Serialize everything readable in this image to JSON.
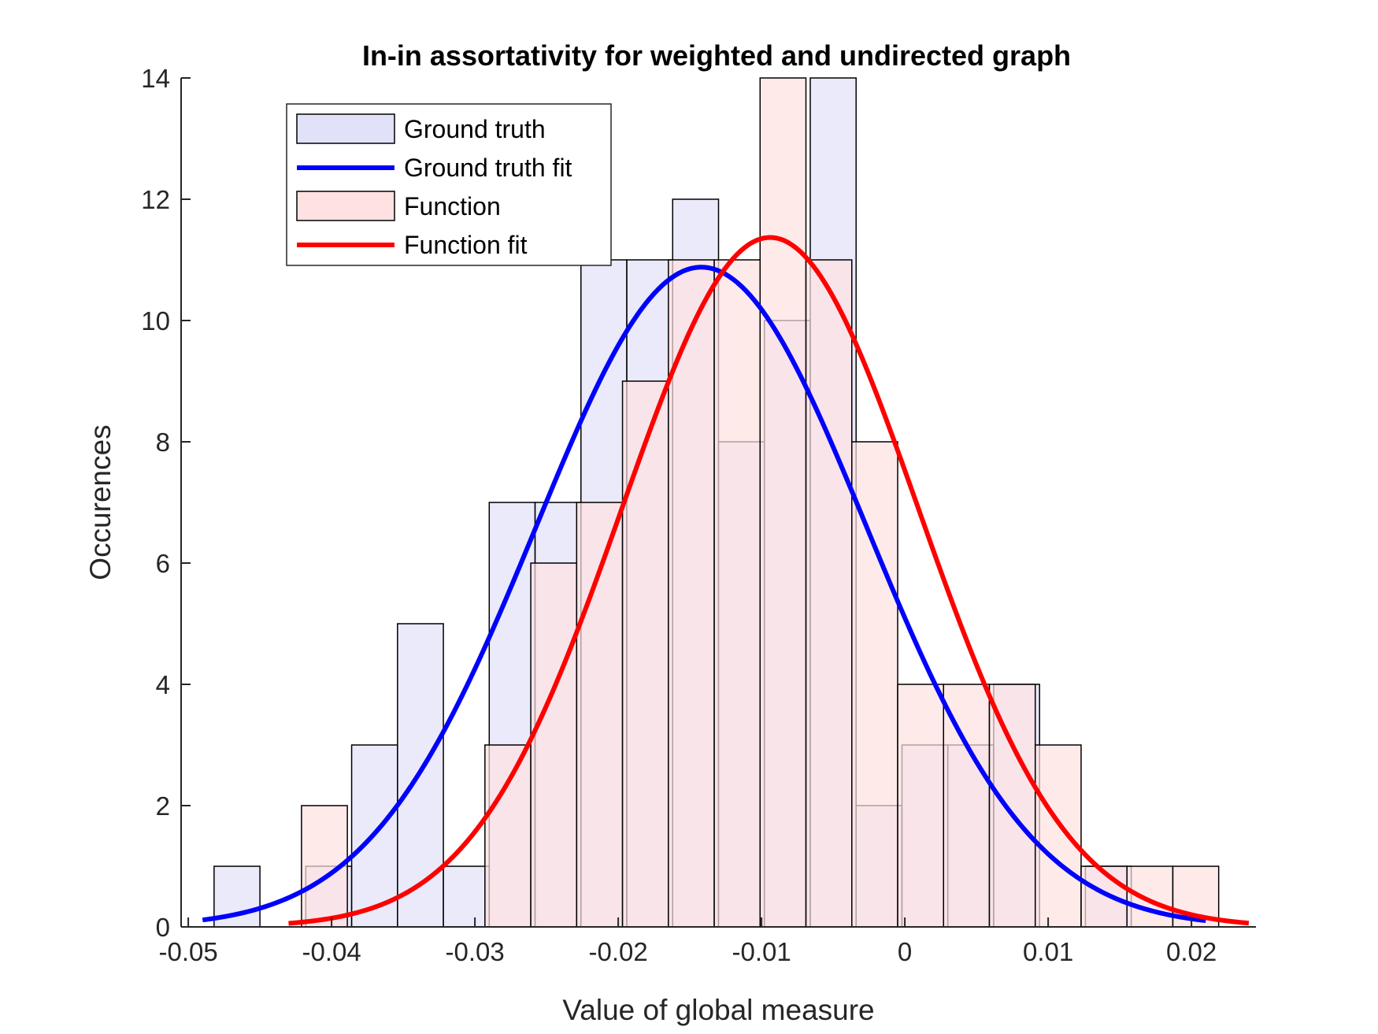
{
  "chart_data": {
    "type": "bar",
    "title": "In-in assortativity for weighted and undirected graph",
    "xlabel": "Value of global measure",
    "ylabel": "Occurences",
    "xlim": [
      -0.0505,
      0.0245
    ],
    "ylim": [
      0,
      14
    ],
    "xticks": [
      -0.05,
      -0.04,
      -0.03,
      -0.02,
      -0.01,
      0,
      0.01,
      0.02
    ],
    "xtick_labels": [
      "-0.05",
      "-0.04",
      "-0.03",
      "-0.02",
      "-0.01",
      "0",
      "0.01",
      "0.02"
    ],
    "yticks": [
      0,
      2,
      4,
      6,
      8,
      10,
      12,
      14
    ],
    "ytick_labels": [
      "0",
      "2",
      "4",
      "6",
      "8",
      "10",
      "12",
      "14"
    ],
    "grid": false,
    "legend_position": "top-left",
    "series": [
      {
        "name": "Ground truth",
        "kind": "histogram",
        "color": "#e1e1fa",
        "edge_color": "#000000",
        "bins": [
          {
            "x0": -0.0482,
            "x1": -0.045,
            "count": 1
          },
          {
            "x0": -0.045,
            "x1": -0.0418,
            "count": 0
          },
          {
            "x0": -0.0418,
            "x1": -0.0386,
            "count": 1
          },
          {
            "x0": -0.0386,
            "x1": -0.0354,
            "count": 3
          },
          {
            "x0": -0.0354,
            "x1": -0.0322,
            "count": 5
          },
          {
            "x0": -0.0322,
            "x1": -0.029,
            "count": 1
          },
          {
            "x0": -0.029,
            "x1": -0.0258,
            "count": 7
          },
          {
            "x0": -0.0258,
            "x1": -0.0226,
            "count": 7
          },
          {
            "x0": -0.0226,
            "x1": -0.0194,
            "count": 11
          },
          {
            "x0": -0.0194,
            "x1": -0.0162,
            "count": 11
          },
          {
            "x0": -0.0162,
            "x1": -0.013,
            "count": 12
          },
          {
            "x0": -0.013,
            "x1": -0.0098,
            "count": 8
          },
          {
            "x0": -0.0098,
            "x1": -0.0066,
            "count": 10
          },
          {
            "x0": -0.0066,
            "x1": -0.0034,
            "count": 14
          },
          {
            "x0": -0.0034,
            "x1": -0.0002,
            "count": 2
          },
          {
            "x0": -0.0002,
            "x1": 0.003,
            "count": 3
          },
          {
            "x0": 0.003,
            "x1": 0.0062,
            "count": 3
          },
          {
            "x0": 0.0062,
            "x1": 0.0094,
            "count": 4
          },
          {
            "x0": 0.0094,
            "x1": 0.0126,
            "count": 0
          },
          {
            "x0": 0.0126,
            "x1": 0.0158,
            "count": 1
          }
        ]
      },
      {
        "name": "Ground truth fit",
        "kind": "line",
        "color": "#0000ff",
        "distribution": "normal",
        "mean": -0.0142,
        "peak": 10.88,
        "sigma": 0.01153,
        "x_range": [
          -0.049,
          0.021
        ]
      },
      {
        "name": "Function",
        "kind": "histogram",
        "color": "#ffe1e1",
        "edge_color": "#000000",
        "bins": [
          {
            "x0": -0.0421,
            "x1": -0.0389,
            "count": 2
          },
          {
            "x0": -0.0389,
            "x1": -0.0357,
            "count": 0
          },
          {
            "x0": -0.0357,
            "x1": -0.0325,
            "count": 0
          },
          {
            "x0": -0.0325,
            "x1": -0.0293,
            "count": 0
          },
          {
            "x0": -0.0293,
            "x1": -0.0261,
            "count": 3
          },
          {
            "x0": -0.0261,
            "x1": -0.0229,
            "count": 6
          },
          {
            "x0": -0.0229,
            "x1": -0.0197,
            "count": 7
          },
          {
            "x0": -0.0197,
            "x1": -0.0165,
            "count": 9
          },
          {
            "x0": -0.0165,
            "x1": -0.0133,
            "count": 11
          },
          {
            "x0": -0.0133,
            "x1": -0.0101,
            "count": 11
          },
          {
            "x0": -0.0101,
            "x1": -0.0069,
            "count": 14
          },
          {
            "x0": -0.0069,
            "x1": -0.0037,
            "count": 11
          },
          {
            "x0": -0.0037,
            "x1": -0.0005,
            "count": 8
          },
          {
            "x0": -0.0005,
            "x1": 0.0027,
            "count": 4
          },
          {
            "x0": 0.0027,
            "x1": 0.0059,
            "count": 4
          },
          {
            "x0": 0.0059,
            "x1": 0.0091,
            "count": 4
          },
          {
            "x0": 0.0091,
            "x1": 0.0123,
            "count": 3
          },
          {
            "x0": 0.0123,
            "x1": 0.0155,
            "count": 1
          },
          {
            "x0": 0.0155,
            "x1": 0.0187,
            "count": 1
          },
          {
            "x0": 0.0187,
            "x1": 0.0219,
            "count": 1
          }
        ]
      },
      {
        "name": "Function fit",
        "kind": "line",
        "color": "#ff0000",
        "distribution": "normal",
        "mean": -0.0094,
        "peak": 11.37,
        "sigma": 0.01035,
        "x_range": [
          -0.043,
          0.024
        ]
      }
    ]
  }
}
